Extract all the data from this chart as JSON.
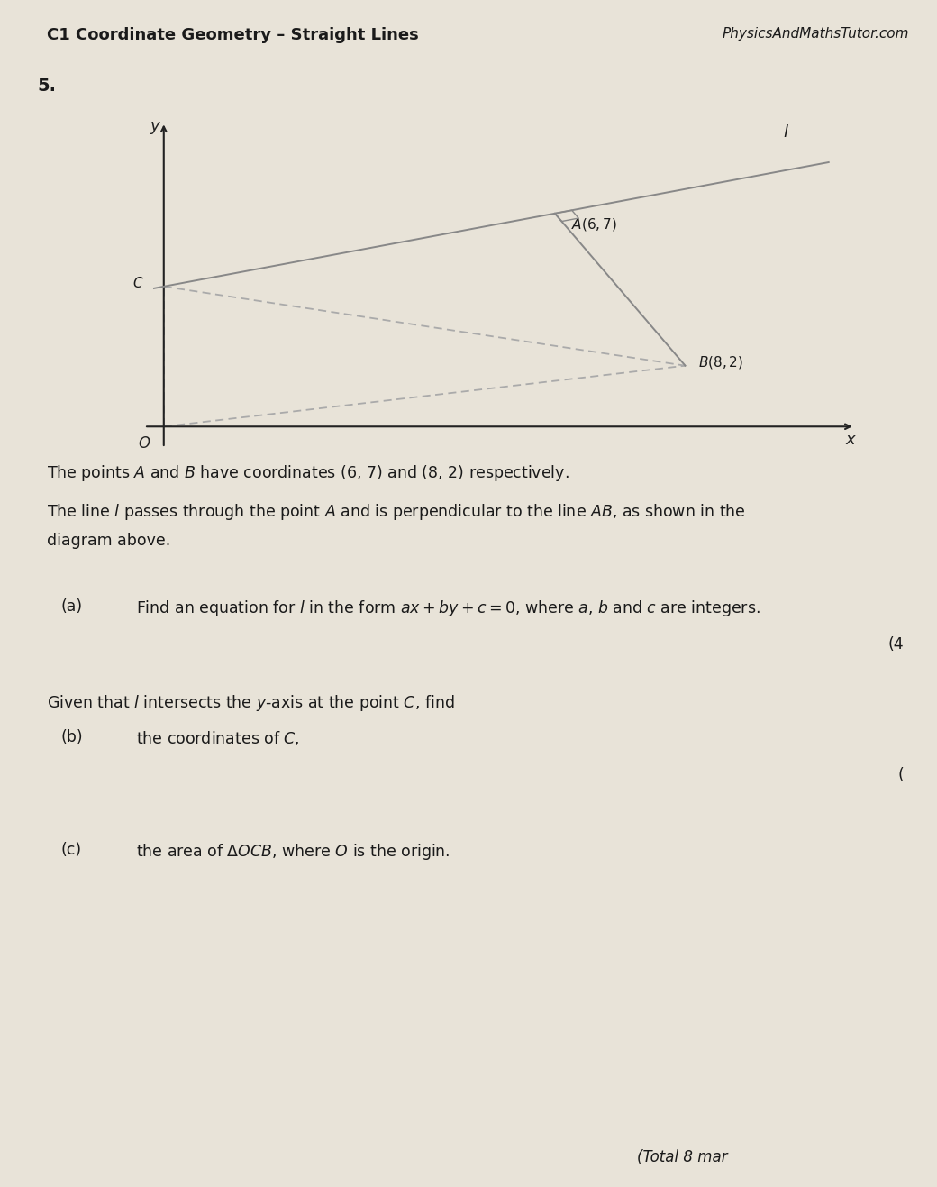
{
  "bg_color": "#e8e3d8",
  "header_left": "C1 Coordinate Geometry – Straight Lines",
  "header_right": "PhysicsAndMathsTutor.com",
  "question_number": "5.",
  "A": [
    6,
    7
  ],
  "B": [
    8,
    2
  ],
  "axis_color": "#222222",
  "line_color": "#888888",
  "dashed_color": "#aaaaaa",
  "text_color": "#1a1a1a",
  "part_a_label": "(a)",
  "part_a_text": "Find an equation for $l$ in the form $ax + by + c = 0$, where $a$, $b$ and $c$ are integers.",
  "part_b_intro": "Given that $l$ intersects the $y$-axis at the point $C$, find",
  "part_b_label": "(b)",
  "part_b_text": "the coordinates of $C$,",
  "part_c_label": "(c)",
  "part_c_text": "the area of $\\Delta OCB$, where $O$ is the origin.",
  "marks_a": "(4",
  "marks_b": "(",
  "intro_line1": "The points $A$ and $B$ have coordinates (6, 7) and (8, 2) respectively.",
  "intro_line2": "The line $l$ passes through the point $A$ and is perpendicular to the line $AB$, as shown in the",
  "intro_line3": "diagram above.",
  "footer": "(Total 8 mar"
}
